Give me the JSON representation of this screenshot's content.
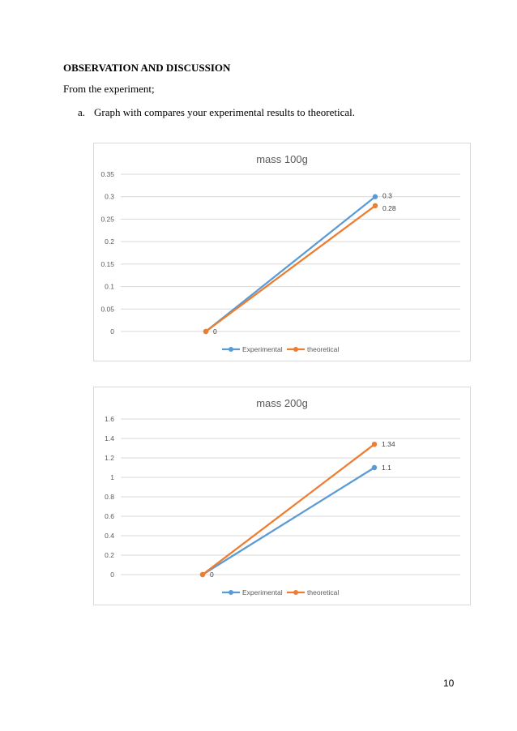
{
  "document": {
    "heading": "OBSERVATION AND DISCUSSION",
    "intro": "From the experiment;",
    "list_item": {
      "marker": "a.",
      "text": "Graph with compares your experimental results to theoretical."
    },
    "page_number": "10"
  },
  "chart_data": [
    {
      "type": "line",
      "title": "mass 100g",
      "xlabel": "",
      "ylabel": "",
      "x": [
        "1",
        "2"
      ],
      "ylim": [
        0,
        0.35
      ],
      "yticks": [
        "0",
        "0.05",
        "0.1",
        "0.15",
        "0.2",
        "0.25",
        "0.3",
        "0.35"
      ],
      "grid": true,
      "legend": "bottom",
      "series": [
        {
          "name": "Experimental",
          "values": [
            0,
            0.3
          ],
          "color": "#5b9bd5",
          "labels": [
            "0",
            "0.3"
          ]
        },
        {
          "name": "theoretical",
          "values": [
            0,
            0.28
          ],
          "color": "#ed7d31",
          "labels": [
            "",
            "0.28"
          ]
        }
      ]
    },
    {
      "type": "line",
      "title": "mass 200g",
      "xlabel": "",
      "ylabel": "",
      "x": [
        "1",
        "2"
      ],
      "ylim": [
        0,
        1.6
      ],
      "yticks": [
        "0",
        "0.2",
        "0.4",
        "0.6",
        "0.8",
        "1",
        "1.2",
        "1.4",
        "1.6"
      ],
      "grid": true,
      "legend": "bottom",
      "series": [
        {
          "name": "Experimental",
          "values": [
            0,
            1.1
          ],
          "color": "#5b9bd5",
          "labels": [
            "",
            "1.1"
          ]
        },
        {
          "name": "theoretical",
          "values": [
            0,
            1.34
          ],
          "color": "#ed7d31",
          "labels": [
            "0",
            "1.34"
          ]
        }
      ]
    }
  ]
}
